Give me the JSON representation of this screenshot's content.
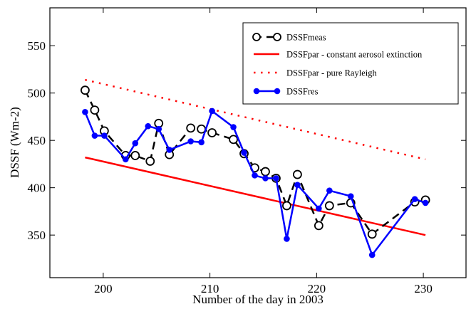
{
  "chart_data": {
    "type": "line",
    "title": "",
    "xlabel": "Number of the day in 2003",
    "ylabel": "DSSF (Wm-2)",
    "xlim": [
      195,
      234
    ],
    "ylim": [
      305,
      590
    ],
    "xticks": [
      200,
      210,
      220,
      230
    ],
    "yticks": [
      350,
      400,
      450,
      500,
      550
    ],
    "grid": false,
    "legend_position": "top-right",
    "series": [
      {
        "name": "DSSFmeas",
        "style": "dashed-open-circles",
        "color": "#000000",
        "x": [
          198.3,
          199.2,
          200.1,
          202.1,
          203.0,
          204.4,
          205.2,
          206.2,
          208.2,
          209.2,
          210.2,
          212.2,
          213.2,
          214.2,
          215.2,
          216.2,
          217.2,
          218.2,
          220.2,
          221.2,
          223.2,
          225.2,
          229.2,
          230.2
        ],
        "y": [
          503,
          482,
          460,
          434,
          434,
          428,
          468,
          435,
          463,
          462,
          458,
          451,
          436,
          421,
          417,
          410,
          381,
          414,
          360,
          381,
          384,
          351,
          385,
          387
        ]
      },
      {
        "name": "DSSFpar - constant aerosol extinction",
        "style": "solid",
        "color": "#ff0000",
        "x": [
          198.3,
          230.2
        ],
        "y": [
          432,
          350
        ]
      },
      {
        "name": "DSSFpar - pure Rayleigh",
        "style": "dotted",
        "color": "#ff0000",
        "x": [
          198.3,
          230.2
        ],
        "y": [
          514,
          430
        ]
      },
      {
        "name": "DSSFres",
        "style": "solid-filled-circles",
        "color": "#0000ff",
        "x": [
          198.3,
          199.2,
          200.1,
          202.1,
          203.0,
          204.2,
          205.2,
          206.2,
          208.2,
          209.2,
          210.2,
          212.2,
          213.2,
          214.2,
          215.2,
          216.2,
          217.2,
          218.2,
          220.2,
          221.2,
          223.2,
          225.2,
          229.2,
          230.2
        ],
        "y": [
          480,
          455,
          455,
          430,
          447,
          465,
          462,
          440,
          449,
          448,
          481,
          464,
          437,
          413,
          410,
          410,
          346,
          403,
          378,
          397,
          391,
          329,
          388,
          384
        ]
      }
    ]
  }
}
